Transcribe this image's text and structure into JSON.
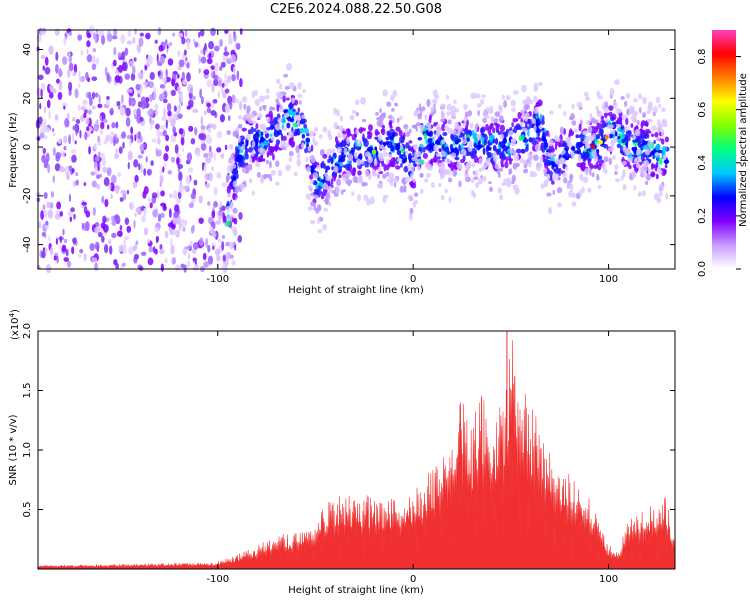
{
  "title": "C2E6.2024.088.22.50.G08",
  "chart_data": [
    {
      "type": "heatmap",
      "xlabel": "Height of straight line (km)",
      "ylabel": "Frequency (Hz)",
      "xlim": [
        -192,
        134
      ],
      "ylim": [
        -50,
        48
      ],
      "xticks": [
        -100,
        0,
        100
      ],
      "yticks": [
        -40,
        -20,
        0,
        20,
        40
      ],
      "colorbar": {
        "label": "Normalized spectral amplitude",
        "range": [
          0.0,
          0.9
        ],
        "ticks": [
          "0.0",
          "0.2",
          "0.4",
          "0.6",
          "0.8"
        ],
        "colors": [
          "#ffffff",
          "#c89cff",
          "#8000ff",
          "#0000ff",
          "#00c8ff",
          "#00ff80",
          "#80ff00",
          "#ffff00",
          "#ff8000",
          "#ff0000",
          "#ff40c0"
        ]
      },
      "noise_region_x": [
        -192,
        -88
      ],
      "ridge": {
        "x": [
          -95,
          -90,
          -85,
          -80,
          -70,
          -65,
          -60,
          -55,
          -50,
          -45,
          -40,
          -30,
          -20,
          -10,
          0,
          5,
          10,
          20,
          30,
          40,
          50,
          60,
          65,
          70,
          75,
          80,
          90,
          95,
          100,
          105,
          110,
          120,
          130
        ],
        "y": [
          -30,
          -5,
          2,
          2,
          6,
          12,
          10,
          5,
          -15,
          -12,
          -5,
          -2,
          -2,
          2,
          -8,
          5,
          2,
          0,
          2,
          0,
          2,
          5,
          10,
          -8,
          -5,
          -2,
          0,
          0,
          8,
          5,
          0,
          0,
          -5
        ]
      }
    },
    {
      "type": "area",
      "xlabel": "Height of straight line (km)",
      "ylabel": "SNR (10 * v/v)",
      "y_scale_label": "(x10",
      "y_scale_exp": "4",
      "y_scale_close": ")",
      "xlim": [
        -192,
        134
      ],
      "ylim": [
        0,
        2.0
      ],
      "xticks": [
        -100,
        0,
        100
      ],
      "yticks": [
        "0.5",
        "1.0",
        "1.5",
        "2.0"
      ],
      "color": "#f03030",
      "envelope": {
        "x": [
          -192,
          -150,
          -100,
          -90,
          -80,
          -70,
          -60,
          -50,
          -45,
          -40,
          -30,
          -20,
          -10,
          0,
          10,
          15,
          20,
          25,
          30,
          35,
          40,
          45,
          50,
          55,
          60,
          65,
          70,
          80,
          90,
          95,
          100,
          105,
          110,
          120,
          125,
          128,
          134
        ],
        "y": [
          0.03,
          0.04,
          0.06,
          0.12,
          0.2,
          0.28,
          0.32,
          0.45,
          0.55,
          0.6,
          0.65,
          0.6,
          0.6,
          0.68,
          0.85,
          1.1,
          1.2,
          1.5,
          1.2,
          1.6,
          1.3,
          1.4,
          2.0,
          1.6,
          1.4,
          1.2,
          1.0,
          0.8,
          0.6,
          0.45,
          0.2,
          0.15,
          0.45,
          0.55,
          0.5,
          0.72,
          0.25
        ]
      }
    }
  ]
}
